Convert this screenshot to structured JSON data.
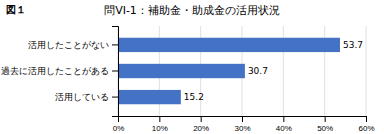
{
  "chart_data": {
    "type": "bar",
    "orientation": "horizontal",
    "title": "問VI-1：補助金・助成金の活用状況",
    "subtitle": "図１",
    "categories": [
      "活用したことがない",
      "過去に活用したことがある",
      "活用している"
    ],
    "values": [
      53.7,
      30.7,
      15.2
    ],
    "color": "#4472C4",
    "xlim": [
      0,
      60
    ],
    "xticks": [
      {
        "value": 0,
        "label": "0%"
      },
      {
        "value": 10,
        "label": "10%"
      },
      {
        "value": 20,
        "label": "20%"
      },
      {
        "value": 30,
        "label": "30%"
      },
      {
        "value": 40,
        "label": "40%"
      },
      {
        "value": 50,
        "label": "50%"
      },
      {
        "value": 60,
        "label": "60%"
      }
    ],
    "grid": true,
    "data_labels": true
  }
}
